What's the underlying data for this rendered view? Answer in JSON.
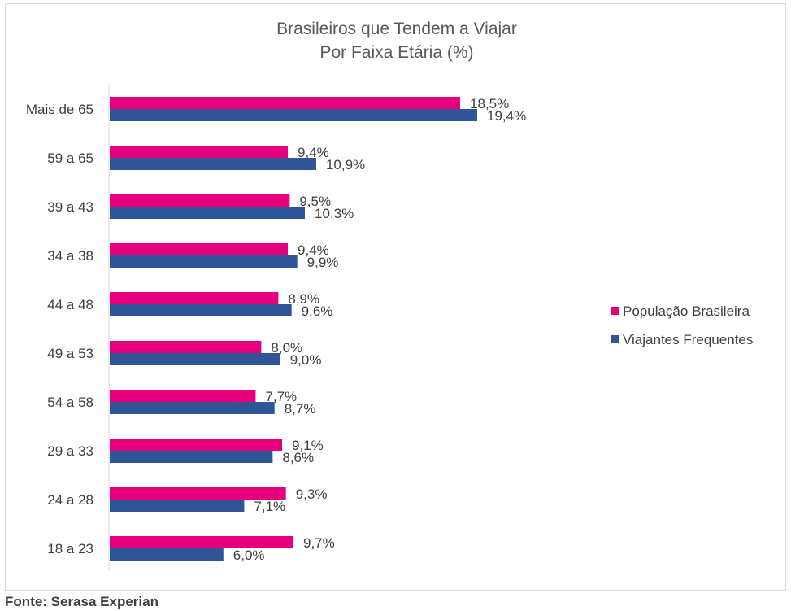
{
  "chart_data": {
    "type": "bar",
    "orientation": "horizontal",
    "title": [
      "Brasileiros que Tendem a Viajar",
      "Por Faixa Etária (%)"
    ],
    "categories": [
      "Mais de 65",
      "59 a 65",
      "39 a 43",
      "34 a 38",
      "44 a 48",
      "49 a 53",
      "54 a 58",
      "29 a 33",
      "24 a 28",
      "18 a 23"
    ],
    "series": [
      {
        "name": "População Brasileira",
        "color": "#e6007e",
        "values": [
          18.5,
          9.4,
          9.5,
          9.4,
          8.9,
          8.0,
          7.7,
          9.1,
          9.3,
          9.7
        ],
        "labels": [
          "18,5%",
          "9,4%",
          "9,5%",
          "9,4%",
          "8,9%",
          "8,0%",
          "7,7%",
          "9,1%",
          "9,3%",
          "9,7%"
        ]
      },
      {
        "name": "Viajantes Frequentes",
        "color": "#2f5597",
        "values": [
          19.4,
          10.9,
          10.3,
          9.9,
          9.6,
          9.0,
          8.7,
          8.6,
          7.1,
          6.0
        ],
        "labels": [
          "19,4%",
          "10,9%",
          "10,3%",
          "9,9%",
          "9,6%",
          "9,0%",
          "8,7%",
          "8,6%",
          "7,1%",
          "6,0%"
        ]
      }
    ],
    "xlim": [
      0,
      20
    ],
    "grid": false,
    "legend_position": "right"
  },
  "source": "Fonte: Serasa Experian"
}
